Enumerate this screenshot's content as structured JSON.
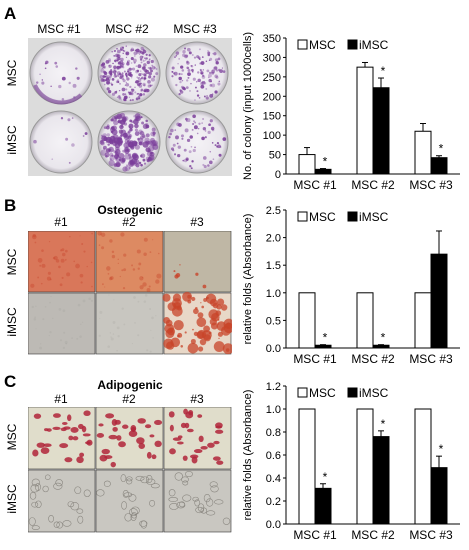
{
  "panels": {
    "A": {
      "letter": "A",
      "columns": [
        "MSC #1",
        "MSC #2",
        "MSC #3"
      ],
      "rows": [
        "MSC",
        "iMSC"
      ]
    },
    "B": {
      "letter": "B",
      "title": "Osteogenic",
      "columns": [
        "#1",
        "#2",
        "#3"
      ],
      "rows": [
        "MSC",
        "iMSC"
      ]
    },
    "C": {
      "letter": "C",
      "title": "Adipogenic",
      "columns": [
        "#1",
        "#2",
        "#3"
      ],
      "rows": [
        "MSC",
        "iMSC"
      ]
    }
  },
  "colors": {
    "msc_bar": "#ffffff",
    "imsc_bar": "#000000",
    "colony_purple": "#7a3d9a",
    "osteo_red": "#c8442a",
    "adipo_red": "#b0243a"
  },
  "chart_data": [
    {
      "type": "bar",
      "categories": [
        "MSC #1",
        "MSC #2",
        "MSC #3"
      ],
      "series": [
        {
          "name": "MSC",
          "values": [
            50,
            275,
            110
          ],
          "errors": [
            18,
            12,
            20
          ]
        },
        {
          "name": "iMSC",
          "values": [
            12,
            222,
            42
          ],
          "errors": [
            2,
            25,
            5
          ]
        }
      ],
      "significance": [
        "*",
        "*",
        "*"
      ],
      "ylabel": "No. of colony (input 1000cells)",
      "xlabel": "",
      "ylim": [
        0,
        350
      ],
      "yticks": [
        0,
        50,
        100,
        150,
        200,
        250,
        300,
        350
      ],
      "legend": "top-left",
      "grid": false
    },
    {
      "type": "bar",
      "categories": [
        "MSC #1",
        "MSC #2",
        "MSC #3"
      ],
      "series": [
        {
          "name": "MSC",
          "values": [
            1.0,
            1.0,
            1.0
          ],
          "errors": [
            0,
            0,
            0
          ]
        },
        {
          "name": "iMSC",
          "values": [
            0.05,
            0.05,
            1.7
          ],
          "errors": [
            0.01,
            0.01,
            0.42
          ]
        }
      ],
      "significance": [
        "*",
        "*",
        ""
      ],
      "ylabel": "relative folds (Absorbance)",
      "xlabel": "",
      "ylim": [
        0,
        2.5
      ],
      "yticks": [
        0.0,
        0.5,
        1.0,
        1.5,
        2.0,
        2.5
      ],
      "legend": "top-left",
      "grid": false
    },
    {
      "type": "bar",
      "categories": [
        "MSC #1",
        "MSC #2",
        "MSC #3"
      ],
      "series": [
        {
          "name": "MSC",
          "values": [
            1.0,
            1.0,
            1.0
          ],
          "errors": [
            0,
            0,
            0
          ]
        },
        {
          "name": "iMSC",
          "values": [
            0.31,
            0.76,
            0.49
          ],
          "errors": [
            0.04,
            0.05,
            0.1
          ]
        }
      ],
      "significance": [
        "*",
        "*",
        "*"
      ],
      "ylabel": "relative folds (Absorbance)",
      "xlabel": "",
      "ylim": [
        0,
        1.2
      ],
      "yticks": [
        0.0,
        0.2,
        0.4,
        0.6,
        0.8,
        1.0,
        1.2
      ],
      "legend": "top-left",
      "grid": false
    }
  ]
}
